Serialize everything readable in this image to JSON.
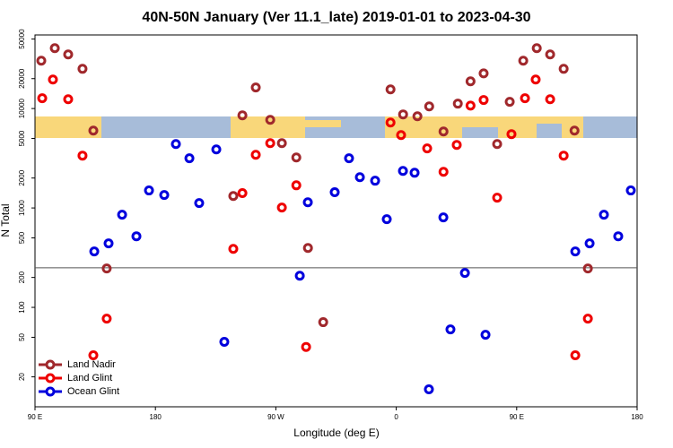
{
  "chart_data": {
    "type": "scatter",
    "title": "40N-50N January (Ver 11.1_late)   2019-01-01 to 2023-04-30",
    "x_label": "Longitude (deg E)",
    "y_label": "N Total",
    "log_y": true,
    "legend": "bottom-left",
    "hline": 250,
    "xlim": [
      90,
      540
    ],
    "ylim": [
      10,
      55000
    ],
    "xticks": [
      {
        "value": 90,
        "label": "90 E"
      },
      180,
      {
        "value": 270,
        "label": "90 W"
      },
      {
        "value": 360,
        "label": "0"
      },
      {
        "value": 450,
        "label": "90 E"
      },
      {
        "value": 540,
        "label": "180"
      }
    ],
    "yticks": [
      20,
      50,
      100,
      200,
      500,
      1000,
      2000,
      5000,
      10000,
      20000,
      50000
    ],
    "series": [
      {
        "name": "Land Nadir",
        "color": "#a0282c",
        "x": [
          94.7,
          104.8,
          114.8,
          125.5,
          133.6,
          143.6,
          238.2,
          245,
          255,
          265.8,
          274.5,
          285.3,
          294,
          305.4,
          355.7,
          365.1,
          375.8,
          384.6,
          395.3,
          406,
          415.5,
          425.3,
          435.4,
          444.8,
          454.9,
          465,
          475,
          485.1,
          493.2,
          503.2
        ],
        "values": [
          30300,
          40500,
          35000,
          25100,
          6000,
          246,
          1320,
          8550,
          16300,
          7700,
          4490,
          3220,
          396,
          71,
          15600,
          8730,
          8370,
          10500,
          5880,
          11200,
          18800,
          22600,
          4400,
          11700,
          30300,
          40500,
          35000,
          25100,
          6000,
          246
        ]
      },
      {
        "name": "Land Glint",
        "color": "#ee0000",
        "x": [
          95.4,
          103.4,
          114.8,
          125.5,
          143.6,
          133.6,
          238.2,
          245,
          255,
          265.8,
          274.5,
          285.3,
          292.6,
          355.7,
          363.6,
          383.1,
          395.3,
          405.2,
          415.5,
          425.3,
          435.4,
          446.1,
          456.2,
          464.2,
          475,
          485.1,
          493.8,
          503.2
        ],
        "values": [
          12700,
          19600,
          12400,
          3360,
          77,
          33,
          388,
          1410,
          3430,
          4490,
          1010,
          1690,
          40,
          7240,
          5410,
          3970,
          2310,
          4310,
          10700,
          12200,
          1270,
          5530,
          12700,
          19600,
          12400,
          3360,
          33,
          77
        ]
      },
      {
        "name": "Ocean Glint",
        "color": "#0000dd",
        "x": [
          134.3,
          145,
          155.1,
          165.8,
          175.2,
          186.6,
          195.3,
          205.4,
          212.7,
          225.5,
          231.5,
          287.9,
          293.9,
          314,
          324.7,
          332.8,
          344.2,
          352.9,
          365,
          373.7,
          384.4,
          395.2,
          400.5,
          411.3,
          426.7,
          493.8,
          504.5,
          515.2,
          525.9,
          535.3
        ],
        "values": [
          365,
          440,
          855,
          519,
          1500,
          1350,
          4400,
          3160,
          1120,
          3880,
          45,
          208,
          1140,
          1440,
          3160,
          2040,
          1880,
          771,
          2360,
          2260,
          15,
          803,
          60,
          222,
          53,
          365,
          440,
          855,
          519,
          1500
        ]
      }
    ]
  }
}
